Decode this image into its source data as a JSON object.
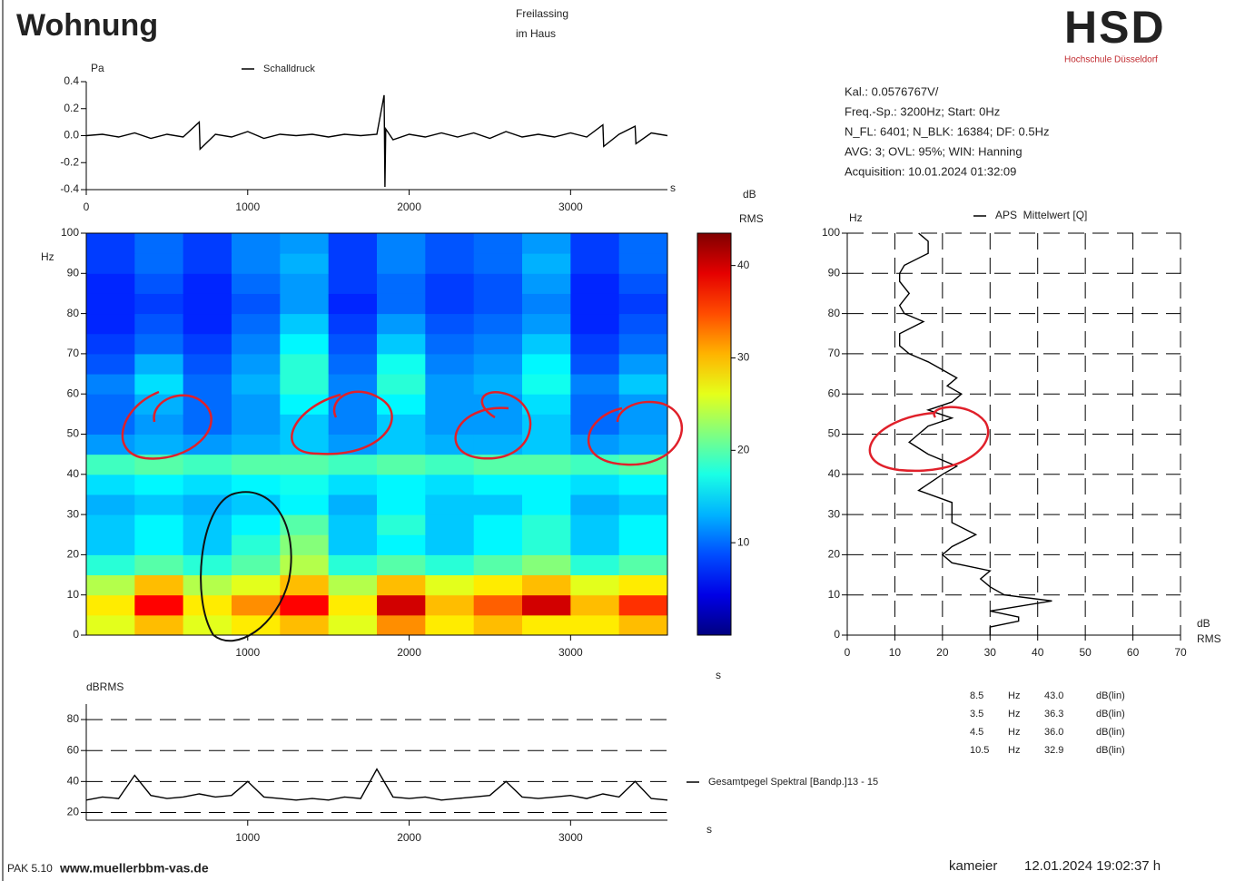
{
  "header": {
    "title": "Wohnung",
    "location": [
      "Freilassing",
      "im Haus"
    ],
    "logo": "HSD",
    "logo_subtitle": "Hochschule Düsseldorf"
  },
  "info": [
    "Kal.: 0.0576767V/",
    "Freq.-Sp.: 3200Hz; Start: 0Hz",
    "N_FL: 6401; N_BLK: 16384; DF: 0.5Hz",
    "AVG: 3; OVL: 95%; WIN: Hanning",
    "Acquisition: 10.01.2024 01:32:09"
  ],
  "footer": {
    "software": "PAK 5.10",
    "url": "www.muellerbbm-vas.de",
    "user": "kameier",
    "timestamp": "12.01.2024 19:02:37 h"
  },
  "chart_data": [
    {
      "type": "line",
      "y_label": "Pa",
      "x_label": "s",
      "xlim": [
        0,
        3600
      ],
      "xticks": [
        0,
        1000,
        2000,
        3000
      ],
      "ylim": [
        -0.4,
        0.4
      ],
      "yticks": [
        0.4,
        0.2,
        {
          "value": 0,
          "label": "0.0"
        },
        -0.2,
        -0.4
      ],
      "grid": false,
      "x": [
        0,
        100,
        200,
        300,
        400,
        500,
        600,
        700,
        705,
        800,
        900,
        1000,
        1100,
        1200,
        1300,
        1400,
        1500,
        1600,
        1700,
        1800,
        1845,
        1850,
        1855,
        1900,
        2000,
        2100,
        2200,
        2300,
        2400,
        2500,
        2600,
        2700,
        2800,
        2900,
        3000,
        3100,
        3200,
        3205,
        3300,
        3400,
        3405,
        3500,
        3600
      ],
      "series": [
        {
          "name": "Schalldruck",
          "color": "#000000",
          "values": [
            0,
            0.01,
            -0.01,
            0.02,
            -0.02,
            0.01,
            -0.01,
            0.1,
            -0.1,
            0.01,
            -0.01,
            0.03,
            -0.02,
            0.01,
            0,
            0.01,
            -0.01,
            0.01,
            0,
            0.01,
            0.3,
            -0.38,
            0.05,
            -0.03,
            0.01,
            -0.01,
            0.02,
            -0.01,
            0.02,
            -0.02,
            0.03,
            -0.01,
            0.01,
            -0.01,
            0.02,
            -0.01,
            0.08,
            -0.08,
            0.01,
            0.07,
            -0.06,
            0.02,
            0
          ]
        }
      ]
    },
    {
      "type": "heatmap",
      "y_label": "Hz",
      "x_label": "s",
      "colorbar_label": [
        "dB",
        "RMS"
      ],
      "colormap": "jet",
      "xlim": [
        0,
        3600
      ],
      "xticks": [
        1000,
        2000,
        3000
      ],
      "ylim": [
        0,
        100
      ],
      "yticks": [
        0,
        10,
        20,
        30,
        40,
        50,
        60,
        70,
        80,
        90,
        100
      ],
      "zlim": [
        0,
        43.5
      ],
      "zticks": [
        10,
        20,
        30,
        40
      ],
      "x_bins": [
        0,
        300,
        600,
        900,
        1200,
        1500,
        1800,
        2100,
        2400,
        2700,
        3000,
        3300,
        3600
      ],
      "y_bins": [
        0,
        5,
        10,
        15,
        20,
        25,
        30,
        35,
        40,
        45,
        50,
        55,
        60,
        65,
        70,
        75,
        80,
        85,
        90,
        95,
        100
      ],
      "z": [
        [
          26,
          30,
          26,
          28,
          30,
          26,
          32,
          28,
          30,
          28,
          28,
          30
        ],
        [
          28,
          38,
          28,
          32,
          38,
          28,
          40,
          30,
          34,
          40,
          30,
          36
        ],
        [
          24,
          30,
          24,
          26,
          30,
          24,
          30,
          26,
          28,
          30,
          26,
          28
        ],
        [
          18,
          20,
          18,
          20,
          24,
          18,
          20,
          18,
          20,
          22,
          18,
          20
        ],
        [
          14,
          16,
          14,
          18,
          22,
          14,
          16,
          14,
          16,
          18,
          14,
          16
        ],
        [
          14,
          16,
          14,
          16,
          20,
          14,
          18,
          14,
          16,
          18,
          14,
          16
        ],
        [
          13,
          14,
          13,
          14,
          16,
          13,
          16,
          14,
          14,
          16,
          13,
          14
        ],
        [
          15,
          16,
          15,
          16,
          17,
          15,
          16,
          15,
          16,
          16,
          15,
          16
        ],
        [
          19,
          20,
          19,
          20,
          20,
          19,
          20,
          19,
          20,
          20,
          19,
          20
        ],
        [
          12,
          13,
          12,
          13,
          14,
          12,
          14,
          13,
          13,
          14,
          12,
          13
        ],
        [
          10,
          12,
          10,
          12,
          14,
          11,
          14,
          12,
          12,
          14,
          10,
          12
        ],
        [
          10,
          13,
          10,
          12,
          16,
          11,
          16,
          12,
          12,
          15,
          10,
          12
        ],
        [
          11,
          15,
          10,
          13,
          18,
          11,
          18,
          12,
          13,
          17,
          11,
          14
        ],
        [
          9,
          13,
          9,
          12,
          18,
          10,
          17,
          11,
          12,
          16,
          9,
          12
        ],
        [
          8,
          10,
          8,
          11,
          16,
          9,
          14,
          10,
          11,
          14,
          8,
          10
        ],
        [
          7,
          9,
          7,
          10,
          14,
          8,
          12,
          9,
          10,
          12,
          7,
          9
        ],
        [
          7,
          8,
          7,
          9,
          12,
          7,
          10,
          8,
          9,
          11,
          7,
          8
        ],
        [
          7,
          9,
          7,
          10,
          12,
          8,
          10,
          8,
          9,
          12,
          7,
          9
        ],
        [
          8,
          10,
          8,
          11,
          13,
          8,
          11,
          9,
          10,
          13,
          8,
          10
        ],
        [
          8,
          10,
          8,
          11,
          12,
          8,
          11,
          9,
          10,
          12,
          8,
          10
        ]
      ]
    },
    {
      "type": "line",
      "orientation": "horizontal",
      "y_label": "Hz",
      "x_label": [
        "dB",
        "RMS"
      ],
      "grid": true,
      "xlim": [
        0,
        70
      ],
      "xticks": [
        0,
        10,
        20,
        30,
        40,
        50,
        60,
        70
      ],
      "ylim": [
        0,
        100
      ],
      "yticks": [
        0,
        10,
        20,
        30,
        40,
        50,
        60,
        70,
        80,
        90,
        100
      ],
      "y": [
        0,
        2,
        3.5,
        4.5,
        6,
        8.5,
        10,
        12,
        14,
        16,
        18,
        20,
        22,
        25,
        28,
        30,
        33,
        36,
        40,
        42,
        45,
        48,
        50,
        52,
        54,
        56,
        58,
        60,
        62,
        64,
        66,
        68,
        70,
        72,
        75,
        78,
        80,
        82,
        85,
        88,
        90,
        92,
        95,
        98,
        100
      ],
      "series": [
        {
          "name": "APS  Mittelwert [Q]",
          "color": "#000000",
          "values": [
            30,
            30,
            36,
            36,
            30,
            43,
            33,
            30,
            28,
            30,
            22,
            20,
            22,
            27,
            22,
            22,
            22,
            15,
            20,
            23,
            17,
            13,
            15,
            17,
            22,
            17,
            22,
            24,
            21,
            23,
            20,
            17,
            13,
            11,
            11,
            16,
            12,
            11,
            13,
            11,
            11,
            12,
            17,
            17,
            15
          ]
        }
      ],
      "peak_table": [
        [
          "8.5",
          "Hz",
          "43.0",
          "dB(lin)"
        ],
        [
          "3.5",
          "Hz",
          "36.3",
          "dB(lin)"
        ],
        [
          "4.5",
          "Hz",
          "36.0",
          "dB(lin)"
        ],
        [
          "10.5",
          "Hz",
          "32.9",
          "dB(lin)"
        ]
      ]
    },
    {
      "type": "line",
      "y_label": "dBRMS",
      "x_label": "s",
      "grid": true,
      "xlim": [
        0,
        3600
      ],
      "xticks": [
        1000,
        2000,
        3000
      ],
      "ylim": [
        15,
        90
      ],
      "yticks": [
        20,
        40,
        60,
        80
      ],
      "x": [
        0,
        100,
        200,
        300,
        400,
        500,
        600,
        700,
        800,
        900,
        1000,
        1100,
        1200,
        1300,
        1400,
        1500,
        1600,
        1700,
        1800,
        1900,
        2000,
        2100,
        2200,
        2300,
        2400,
        2500,
        2600,
        2700,
        2800,
        2900,
        3000,
        3100,
        3200,
        3300,
        3400,
        3500,
        3600
      ],
      "series": [
        {
          "name": "Gesamtpegel Spektral [Bandp.]13 - 15",
          "color": "#000000",
          "values": [
            28,
            30,
            29,
            44,
            31,
            29,
            30,
            32,
            30,
            31,
            40,
            30,
            29,
            28,
            29,
            28,
            30,
            29,
            48,
            30,
            29,
            30,
            28,
            29,
            30,
            31,
            40,
            30,
            29,
            30,
            31,
            29,
            32,
            30,
            40,
            29,
            28
          ]
        }
      ]
    }
  ]
}
